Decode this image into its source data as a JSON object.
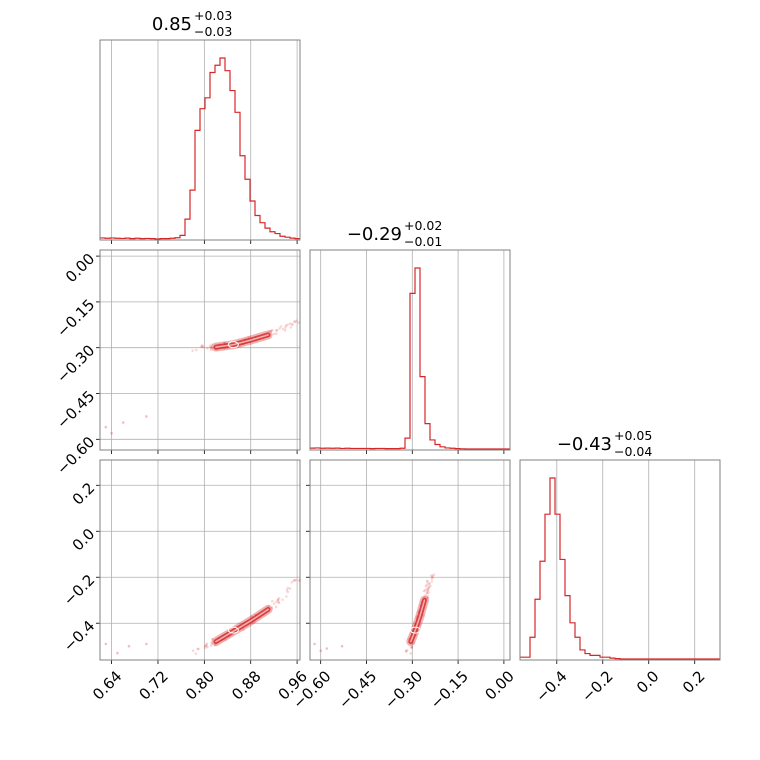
{
  "chart_data": {
    "type": "corner",
    "color": "#d62728",
    "grid": true,
    "parameters": [
      {
        "title_value": "0.85",
        "title_plus": "+0.03",
        "title_minus": "−0.03",
        "range": [
          0.62,
          0.965
        ],
        "ticks": [
          0.64,
          0.72,
          0.8,
          0.88,
          0.96
        ],
        "tick_labels": [
          "0.64",
          "0.72",
          "0.80",
          "0.88",
          "0.96"
        ],
        "hist": [
          0.006,
          0.004,
          0.006,
          0.004,
          0.003,
          0.005,
          0.002,
          0.004,
          0.002,
          0.003,
          0.002,
          0,
          0.002,
          0.002,
          0.004,
          0.007,
          0.02,
          0.11,
          0.27,
          0.6,
          0.72,
          0.78,
          0.92,
          0.96,
          1.0,
          0.93,
          0.82,
          0.7,
          0.46,
          0.33,
          0.21,
          0.13,
          0.09,
          0.06,
          0.04,
          0.03,
          0.015,
          0.01,
          0.005,
          0.002
        ]
      },
      {
        "title_value": "−0.29",
        "title_plus": "+0.02",
        "title_minus": "−0.01",
        "range": [
          -0.635,
          0.02
        ],
        "ticks": [
          -0.6,
          -0.45,
          -0.3,
          -0.15,
          0.0
        ],
        "tick_labels": [
          "−0.60",
          "−0.45",
          "−0.30",
          "−0.15",
          "0.00"
        ],
        "hist": [
          0.005,
          0.006,
          0.004,
          0.005,
          0.004,
          0.005,
          0.003,
          0.004,
          0.003,
          0.003,
          0.003,
          0.003,
          0.002,
          0.003,
          0.003,
          0.002,
          0.002,
          0.002,
          0.004,
          0.06,
          0.86,
          1.0,
          0.4,
          0.14,
          0.05,
          0.025,
          0.012,
          0.006,
          0.004,
          0.002,
          0.001,
          0,
          0,
          0,
          0,
          0,
          0,
          0,
          0,
          0
        ]
      },
      {
        "title_value": "−0.43",
        "title_plus": "+0.05",
        "title_minus": "−0.04",
        "range": [
          -0.56,
          0.31
        ],
        "ticks": [
          -0.4,
          -0.2,
          0.0,
          0.2
        ],
        "tick_labels": [
          "−0.4",
          "−0.2",
          "0.0",
          "0.2"
        ],
        "hist": [
          0.01,
          0.01,
          0.12,
          0.33,
          0.54,
          0.8,
          1.0,
          0.8,
          0.55,
          0.35,
          0.2,
          0.12,
          0.05,
          0.03,
          0.02,
          0.02,
          0.01,
          0.01,
          0.005,
          0.002,
          0,
          0,
          0,
          0,
          0,
          0,
          0,
          0,
          0,
          0,
          0,
          0,
          0,
          0,
          0,
          0,
          0,
          0,
          0,
          0
        ]
      }
    ],
    "pair_relations": {
      "1_vs_0": {
        "center": [
          0.85,
          -0.29
        ],
        "curve": [
          [
            0.78,
            -0.305
          ],
          [
            0.82,
            -0.298
          ],
          [
            0.85,
            -0.29
          ],
          [
            0.88,
            -0.275
          ],
          [
            0.91,
            -0.258
          ],
          [
            0.94,
            -0.235
          ],
          [
            0.96,
            -0.215
          ]
        ],
        "outliers": [
          [
            0.63,
            -0.56
          ],
          [
            0.66,
            -0.545
          ],
          [
            0.7,
            -0.525
          ],
          [
            0.64,
            -0.58
          ]
        ]
      },
      "2_vs_0": {
        "center": [
          0.85,
          -0.43
        ],
        "curve": [
          [
            0.78,
            -0.53
          ],
          [
            0.82,
            -0.48
          ],
          [
            0.85,
            -0.435
          ],
          [
            0.88,
            -0.39
          ],
          [
            0.91,
            -0.34
          ],
          [
            0.94,
            -0.27
          ],
          [
            0.96,
            -0.2
          ]
        ],
        "outliers": [
          [
            0.63,
            -0.49
          ],
          [
            0.67,
            -0.5
          ],
          [
            0.7,
            -0.49
          ],
          [
            0.65,
            -0.53
          ]
        ]
      },
      "2_vs_1": {
        "center": [
          -0.29,
          -0.43
        ],
        "curve": [
          [
            -0.315,
            -0.53
          ],
          [
            -0.305,
            -0.48
          ],
          [
            -0.29,
            -0.43
          ],
          [
            -0.275,
            -0.37
          ],
          [
            -0.26,
            -0.3
          ],
          [
            -0.245,
            -0.23
          ],
          [
            -0.235,
            -0.19
          ]
        ],
        "outliers": [
          [
            -0.62,
            -0.49
          ],
          [
            -0.58,
            -0.51
          ],
          [
            -0.53,
            -0.5
          ],
          [
            -0.6,
            -0.52
          ]
        ]
      }
    }
  }
}
